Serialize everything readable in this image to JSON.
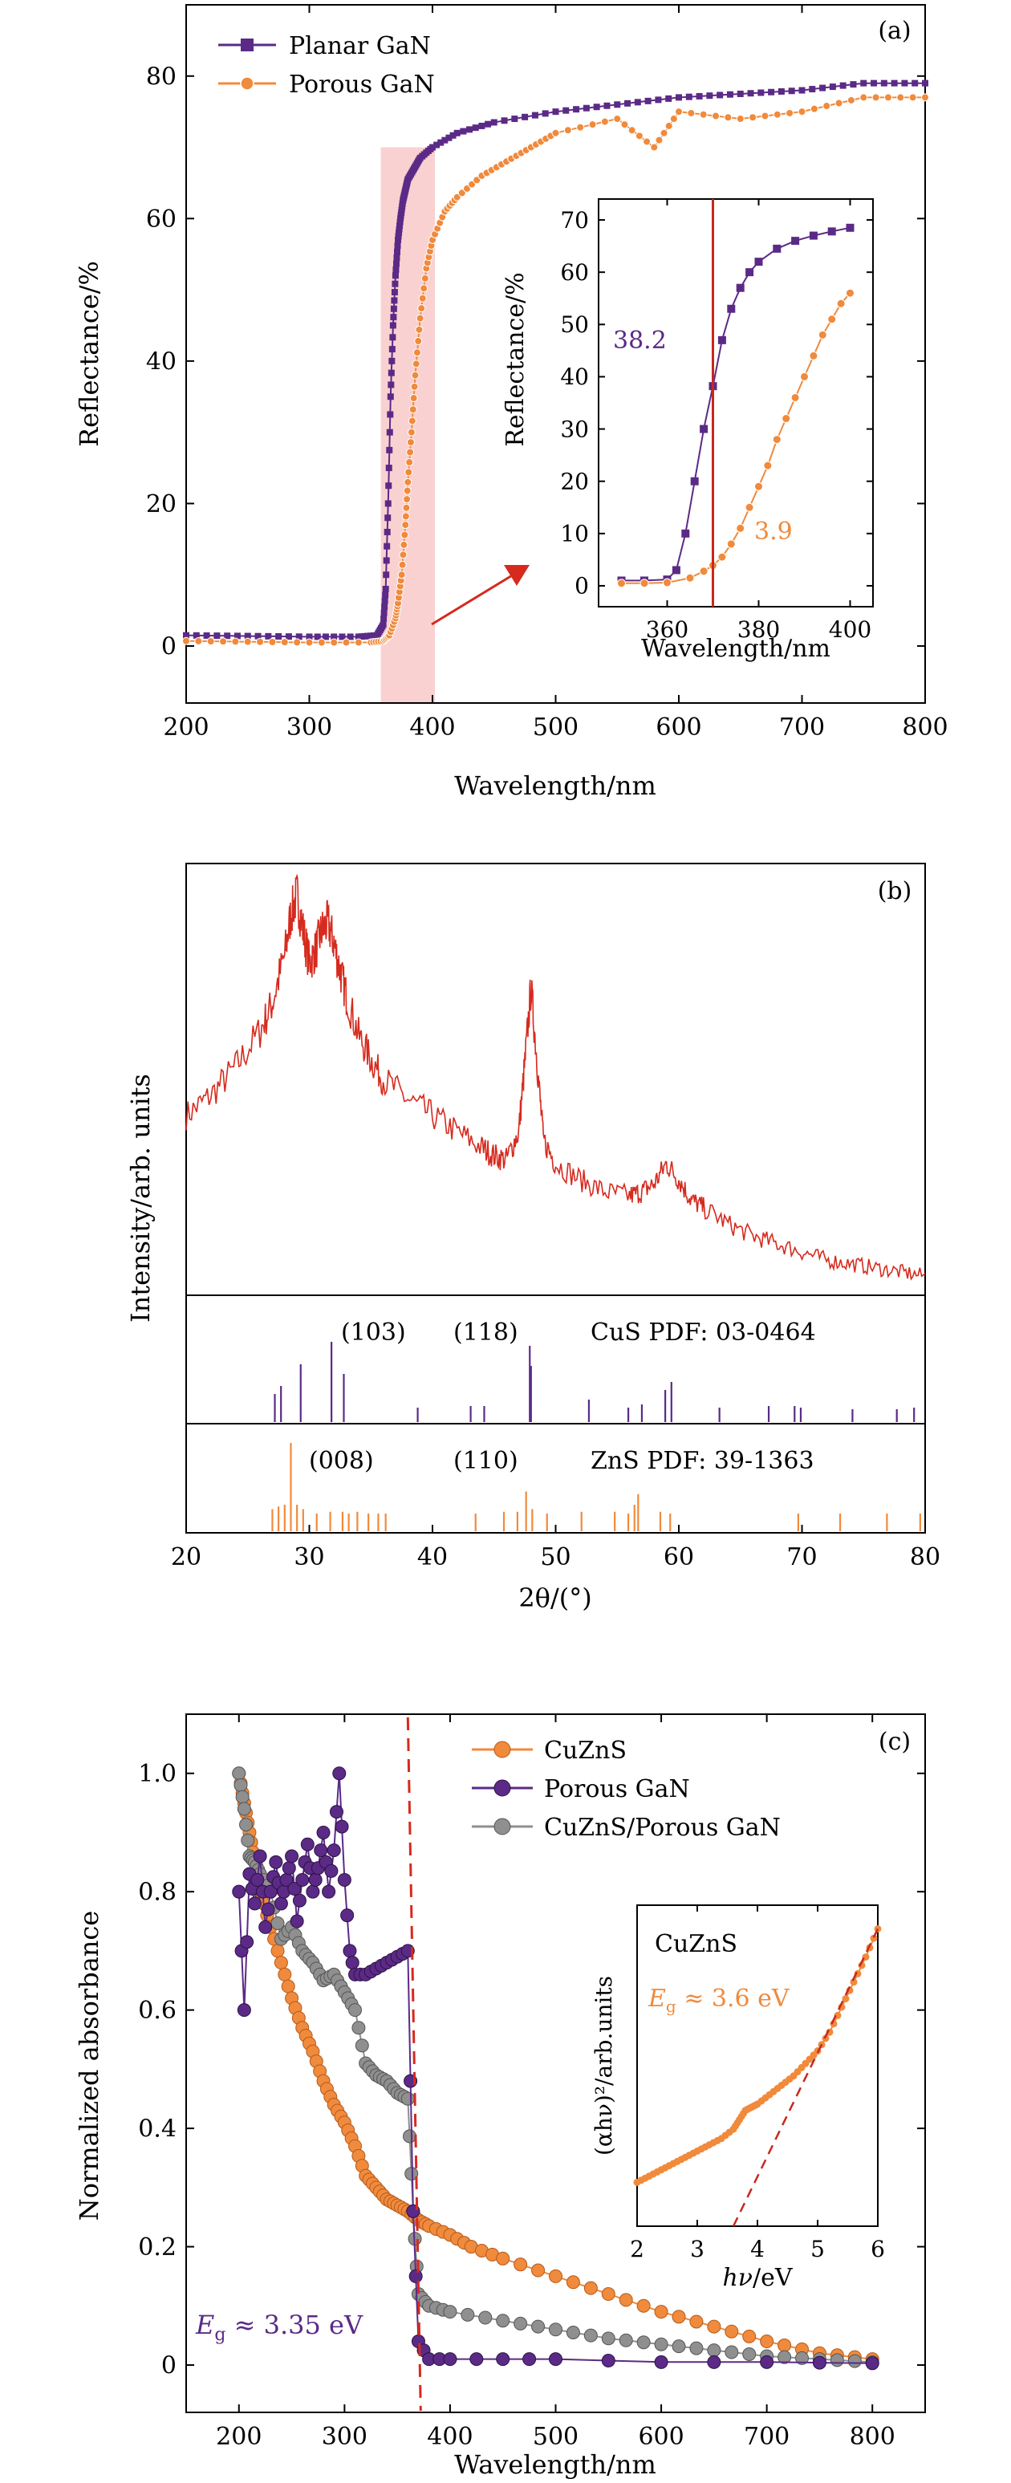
{
  "colors": {
    "purple": "#5b2a86",
    "orange": "#f08a3c",
    "red": "#d62a1e",
    "gray": "#8f8f8f",
    "highlight": "#f6b3b3"
  },
  "chart_data": [
    {
      "id": "a",
      "type": "line",
      "panel_label": "(a)",
      "xlabel": "Wavelength/nm",
      "ylabel": "Reflectance/%",
      "xlim": [
        200,
        800
      ],
      "ylim": [
        -8,
        90
      ],
      "xticks": [
        200,
        300,
        400,
        500,
        600,
        700,
        800
      ],
      "yticks": [
        0,
        20,
        40,
        60,
        80
      ],
      "legend": "top-left",
      "series": [
        {
          "name": "Planar GaN",
          "color": "#5b2a86",
          "marker": "square",
          "x": [
            200,
            250,
            300,
            340,
            355,
            360,
            362,
            364,
            366,
            368,
            370,
            372,
            374,
            376,
            378,
            380,
            385,
            390,
            400,
            420,
            450,
            500,
            550,
            600,
            650,
            700,
            750,
            800
          ],
          "y": [
            1.5,
            1.4,
            1.3,
            1.3,
            1.5,
            3,
            8,
            20,
            35,
            45,
            52,
            57,
            60,
            62.5,
            64,
            65.5,
            67,
            68.5,
            70,
            72,
            73.5,
            75,
            76,
            77,
            77.5,
            78,
            79,
            79
          ]
        },
        {
          "name": "Porous GaN",
          "color": "#f08a3c",
          "marker": "circle",
          "x": [
            200,
            250,
            300,
            350,
            360,
            365,
            370,
            372,
            375,
            378,
            380,
            383,
            386,
            390,
            395,
            400,
            410,
            420,
            440,
            460,
            480,
            500,
            550,
            580,
            600,
            650,
            700,
            750,
            800
          ],
          "y": [
            0.7,
            0.6,
            0.5,
            0.5,
            0.7,
            1.5,
            3.9,
            6,
            10,
            17,
            23,
            30,
            38,
            46,
            53,
            57,
            61,
            63,
            66,
            68,
            70,
            72,
            74,
            70,
            75,
            74,
            75,
            77,
            77
          ]
        }
      ],
      "inset": {
        "xlabel": "Wavelength/nm",
        "ylabel": "Reflectance/%",
        "xlim": [
          345,
          405
        ],
        "ylim": [
          -4,
          74
        ],
        "xticks": [
          360,
          380,
          400
        ],
        "yticks": [
          0,
          10,
          20,
          30,
          40,
          50,
          60,
          70
        ],
        "vline_x": 370,
        "annotations": [
          "38.2",
          "3.9"
        ],
        "series": [
          {
            "name": "Planar GaN",
            "x": [
              350,
              355,
              360,
              362,
              364,
              366,
              368,
              370,
              372,
              374,
              376,
              378,
              380,
              384,
              388,
              392,
              396,
              400
            ],
            "y": [
              1,
              1,
              1.2,
              3,
              10,
              20,
              30,
              38.2,
              47,
              53,
              57,
              60,
              62,
              64.5,
              66,
              67,
              67.8,
              68.5
            ]
          },
          {
            "name": "Porous GaN",
            "x": [
              350,
              355,
              360,
              365,
              368,
              370,
              372,
              374,
              376,
              378,
              380,
              382,
              384,
              386,
              388,
              390,
              392,
              394,
              396,
              398,
              400
            ],
            "y": [
              0.5,
              0.5,
              0.6,
              1.5,
              2.8,
              3.9,
              5.5,
              8,
              11,
              15,
              19,
              23,
              28,
              32,
              36,
              40,
              44,
              48,
              51,
              54,
              56
            ]
          }
        ]
      }
    },
    {
      "id": "b",
      "type": "line",
      "panel_label": "(b)",
      "xlabel": "2θ/(°)",
      "ylabel": "Intensity/arb. units",
      "xlim": [
        20,
        80
      ],
      "xticks": [
        20,
        30,
        40,
        50,
        60,
        70,
        80
      ],
      "series": [
        {
          "name": "XRD",
          "color": "#d62a1e",
          "x": [
            20,
            22,
            24,
            26,
            27,
            28,
            28.5,
            29.0,
            29.5,
            30,
            30.5,
            31,
            31.5,
            32,
            32.5,
            33,
            34,
            35,
            36,
            38,
            40,
            42,
            44,
            45,
            46,
            47,
            47.5,
            48,
            48.5,
            49,
            50,
            52,
            54,
            56,
            57,
            58,
            59,
            60,
            61,
            62,
            64,
            66,
            68,
            70,
            72,
            74,
            76,
            78,
            80
          ],
          "y": [
            0.42,
            0.47,
            0.54,
            0.63,
            0.7,
            0.82,
            0.92,
            0.97,
            0.88,
            0.8,
            0.83,
            0.88,
            0.9,
            0.85,
            0.78,
            0.72,
            0.62,
            0.56,
            0.51,
            0.46,
            0.42,
            0.38,
            0.34,
            0.32,
            0.31,
            0.38,
            0.55,
            0.74,
            0.55,
            0.36,
            0.3,
            0.26,
            0.23,
            0.22,
            0.23,
            0.25,
            0.3,
            0.26,
            0.21,
            0.19,
            0.15,
            0.12,
            0.1,
            0.08,
            0.06,
            0.05,
            0.04,
            0.03,
            0.02
          ]
        }
      ],
      "reference_patterns": [
        {
          "name": "CuS PDF: 03-0464",
          "color": "#5b2a86",
          "peak_labels": [
            "(103)",
            "(118)"
          ],
          "peaks": [
            [
              27.2,
              0.35
            ],
            [
              27.7,
              0.45
            ],
            [
              29.3,
              0.72
            ],
            [
              31.8,
              1.0
            ],
            [
              32.8,
              0.6
            ],
            [
              38.8,
              0.18
            ],
            [
              43.1,
              0.2
            ],
            [
              44.2,
              0.2
            ],
            [
              47.9,
              0.95
            ],
            [
              48.0,
              0.7
            ],
            [
              52.7,
              0.28
            ],
            [
              55.9,
              0.18
            ],
            [
              57.0,
              0.22
            ],
            [
              58.9,
              0.4
            ],
            [
              59.4,
              0.5
            ],
            [
              63.3,
              0.18
            ],
            [
              67.3,
              0.2
            ],
            [
              69.4,
              0.2
            ],
            [
              69.9,
              0.18
            ],
            [
              74.1,
              0.16
            ],
            [
              77.7,
              0.16
            ],
            [
              79.1,
              0.18
            ]
          ]
        },
        {
          "name": "ZnS PDF: 39-1363",
          "color": "#f08a3c",
          "peak_labels": [
            "(008)",
            "(110)"
          ],
          "peaks": [
            [
              27.0,
              0.25
            ],
            [
              27.5,
              0.28
            ],
            [
              28.0,
              0.3
            ],
            [
              28.5,
              1.0
            ],
            [
              29.0,
              0.3
            ],
            [
              29.5,
              0.25
            ],
            [
              30.6,
              0.2
            ],
            [
              31.7,
              0.22
            ],
            [
              32.7,
              0.22
            ],
            [
              33.2,
              0.2
            ],
            [
              33.9,
              0.22
            ],
            [
              34.8,
              0.2
            ],
            [
              35.6,
              0.2
            ],
            [
              36.2,
              0.2
            ],
            [
              43.5,
              0.2
            ],
            [
              45.8,
              0.22
            ],
            [
              46.9,
              0.22
            ],
            [
              47.6,
              0.45
            ],
            [
              48.1,
              0.25
            ],
            [
              49.3,
              0.2
            ],
            [
              52.1,
              0.22
            ],
            [
              54.8,
              0.22
            ],
            [
              55.9,
              0.2
            ],
            [
              56.4,
              0.3
            ],
            [
              56.7,
              0.42
            ],
            [
              58.5,
              0.22
            ],
            [
              59.3,
              0.2
            ],
            [
              69.7,
              0.2
            ],
            [
              73.1,
              0.2
            ],
            [
              76.9,
              0.2
            ],
            [
              79.6,
              0.2
            ]
          ]
        }
      ]
    },
    {
      "id": "c",
      "type": "line",
      "panel_label": "(c)",
      "xlabel": "Wavelength/nm",
      "ylabel": "Normalized absorbance",
      "xlim": [
        150,
        850
      ],
      "ylim": [
        -0.08,
        1.1
      ],
      "xticks": [
        200,
        300,
        400,
        500,
        600,
        700,
        800
      ],
      "yticks": [
        0.0,
        0.2,
        0.4,
        0.6,
        0.8,
        1.0
      ],
      "ytick_labels": [
        "0",
        "0.2",
        "0.4",
        "0.6",
        "0.8",
        "1.0"
      ],
      "legend": "top-right",
      "vline_x": 360,
      "annotation": "Eg ≈ 3.35 eV",
      "annotation_main": "E",
      "annotation_sub": "g",
      "annotation_rest": " ≈ 3.35 eV",
      "series": [
        {
          "name": "CuZnS",
          "color": "#f08a3c",
          "x": [
            200,
            205,
            210,
            215,
            220,
            230,
            240,
            250,
            260,
            270,
            280,
            290,
            300,
            310,
            320,
            330,
            340,
            350,
            360,
            370,
            380,
            400,
            420,
            450,
            500,
            550,
            600,
            650,
            700,
            750,
            800
          ],
          "y": [
            1.0,
            0.95,
            0.9,
            0.85,
            0.8,
            0.74,
            0.68,
            0.62,
            0.57,
            0.53,
            0.48,
            0.44,
            0.41,
            0.37,
            0.32,
            0.3,
            0.28,
            0.27,
            0.26,
            0.245,
            0.235,
            0.22,
            0.2,
            0.18,
            0.15,
            0.12,
            0.09,
            0.065,
            0.04,
            0.02,
            0.01
          ]
        },
        {
          "name": "Porous GaN",
          "color": "#5b2a86",
          "x": [
            200,
            205,
            210,
            215,
            220,
            225,
            230,
            235,
            240,
            245,
            250,
            255,
            260,
            265,
            270,
            275,
            280,
            285,
            290,
            295,
            300,
            305,
            310,
            320,
            330,
            340,
            350,
            360,
            365,
            370,
            380,
            400,
            450,
            500,
            600,
            700,
            800
          ],
          "y": [
            0.8,
            0.6,
            0.83,
            0.78,
            0.86,
            0.74,
            0.8,
            0.85,
            0.78,
            0.82,
            0.86,
            0.75,
            0.82,
            0.88,
            0.8,
            0.84,
            0.9,
            0.8,
            0.87,
            1.0,
            0.82,
            0.7,
            0.66,
            0.66,
            0.67,
            0.68,
            0.69,
            0.7,
            0.26,
            0.04,
            0.01,
            0.01,
            0.01,
            0.01,
            0.005,
            0.005,
            0.003
          ]
        },
        {
          "name": "CuZnS/Porous GaN",
          "color": "#8f8f8f",
          "x": [
            200,
            205,
            210,
            215,
            220,
            230,
            240,
            250,
            260,
            270,
            280,
            290,
            300,
            310,
            320,
            330,
            340,
            350,
            360,
            365,
            370,
            380,
            400,
            450,
            500,
            550,
            600,
            650,
            700,
            750,
            800
          ],
          "y": [
            1.0,
            0.94,
            0.86,
            0.85,
            0.83,
            0.8,
            0.72,
            0.74,
            0.7,
            0.68,
            0.65,
            0.66,
            0.63,
            0.6,
            0.51,
            0.49,
            0.48,
            0.46,
            0.45,
            0.26,
            0.12,
            0.1,
            0.09,
            0.075,
            0.06,
            0.045,
            0.035,
            0.025,
            0.015,
            0.01,
            0.005
          ]
        }
      ],
      "inset": {
        "title": "CuZnS",
        "xlabel_main": "hν",
        "xlabel_rest": "/eV",
        "ylabel": "(αhν)²/arb.units",
        "xlim": [
          2,
          6
        ],
        "ylim": [
          0,
          1
        ],
        "xticks": [
          2,
          3,
          4,
          5,
          6
        ],
        "annotation_main": "E",
        "annotation_sub": "g",
        "annotation_rest": " ≈ 3.6 eV",
        "fit_line": {
          "x": [
            3.6,
            6.0
          ],
          "y": [
            0.0,
            0.95
          ]
        },
        "series": [
          {
            "name": "CuZnS",
            "x": [
              2.0,
              2.2,
              2.4,
              2.6,
              2.8,
              3.0,
              3.2,
              3.4,
              3.6,
              3.7,
              3.8,
              3.9,
              4.0,
              4.2,
              4.4,
              4.6,
              4.8,
              5.0,
              5.2,
              5.4,
              5.6,
              5.8,
              6.0
            ],
            "y": [
              0.14,
              0.16,
              0.18,
              0.2,
              0.22,
              0.24,
              0.26,
              0.28,
              0.31,
              0.34,
              0.37,
              0.38,
              0.39,
              0.42,
              0.45,
              0.48,
              0.52,
              0.56,
              0.62,
              0.7,
              0.78,
              0.86,
              0.95
            ]
          }
        ]
      }
    }
  ]
}
